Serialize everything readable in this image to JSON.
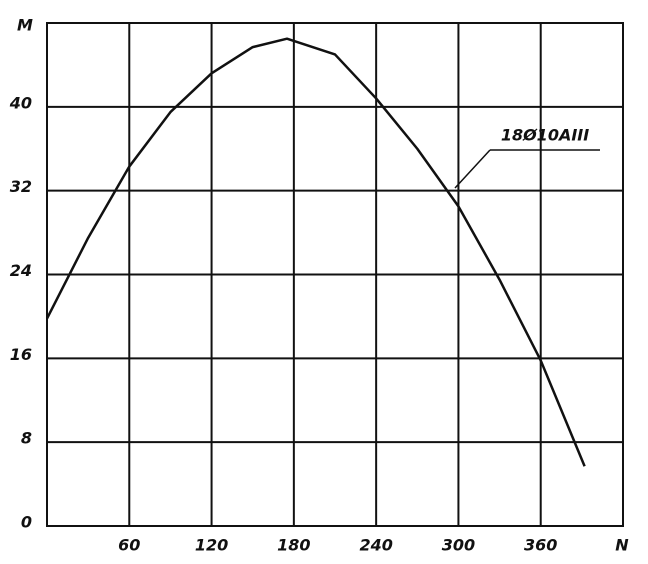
{
  "chart_data": {
    "type": "line",
    "x_label": "N",
    "y_label": "M",
    "x": [
      0,
      30,
      60,
      90,
      120,
      150,
      175,
      210,
      240,
      270,
      300,
      330,
      360,
      392
    ],
    "series": [
      {
        "color": "#111111",
        "values": [
          19.8,
          27.5,
          34.3,
          39.5,
          43.2,
          45.7,
          46.5,
          45,
          40.8,
          36,
          30.5,
          23.5,
          15.8,
          5.7
        ]
      }
    ],
    "annotation": "18Ø10AIII",
    "xlim": [
      0,
      420
    ],
    "ylim": [
      0,
      48
    ],
    "xticks": [
      60,
      120,
      180,
      240,
      300,
      360
    ],
    "yticks": [
      0,
      8,
      16,
      24,
      32,
      40
    ],
    "grid": true
  }
}
